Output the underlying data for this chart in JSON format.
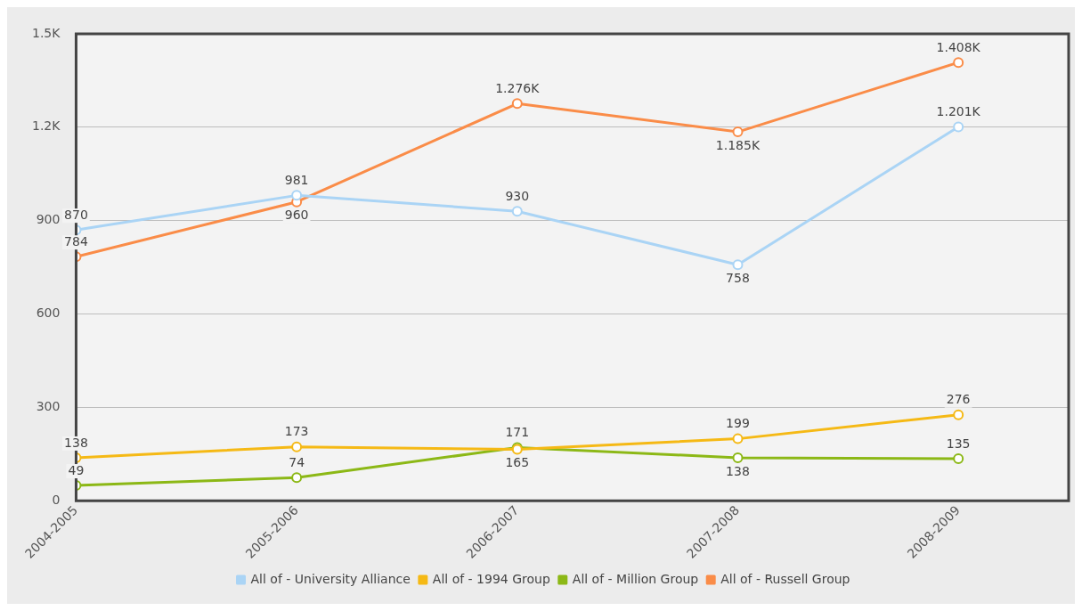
{
  "chart_data": {
    "type": "line",
    "categories": [
      "2004-2005",
      "2005-2006",
      "2006-2007",
      "2007-2008",
      "2008-2009"
    ],
    "series": [
      {
        "name": "All of - University Alliance",
        "color": "#aad4f5",
        "values": [
          870,
          981,
          930,
          758,
          1201
        ],
        "value_labels": [
          "870",
          "981",
          "930",
          "758",
          "1.201K"
        ]
      },
      {
        "name": "All of - 1994 Group",
        "color": "#f5b915",
        "values": [
          138,
          173,
          165,
          199,
          276
        ],
        "value_labels": [
          "138",
          "173",
          "165",
          "199",
          "276"
        ]
      },
      {
        "name": "All of - Million Group",
        "color": "#8cb816",
        "values": [
          49,
          74,
          171,
          138,
          135
        ],
        "value_labels": [
          "49",
          "74",
          "171",
          "138",
          "135"
        ]
      },
      {
        "name": "All of - Russell Group",
        "color": "#fa8c48",
        "values": [
          784,
          960,
          1276,
          1185,
          1408
        ],
        "value_labels": [
          "784",
          "960",
          "1.276K",
          "1.185K",
          "1.408K"
        ]
      }
    ],
    "ylim": [
      0,
      1500
    ],
    "yticks": [
      0,
      300,
      600,
      900,
      {
        "value": 1200,
        "label": "1.2K"
      },
      {
        "value": 1500,
        "label": "1.5K"
      }
    ],
    "grid": "y",
    "legend": "bottom",
    "marker": "circle",
    "line_style": "solid"
  }
}
